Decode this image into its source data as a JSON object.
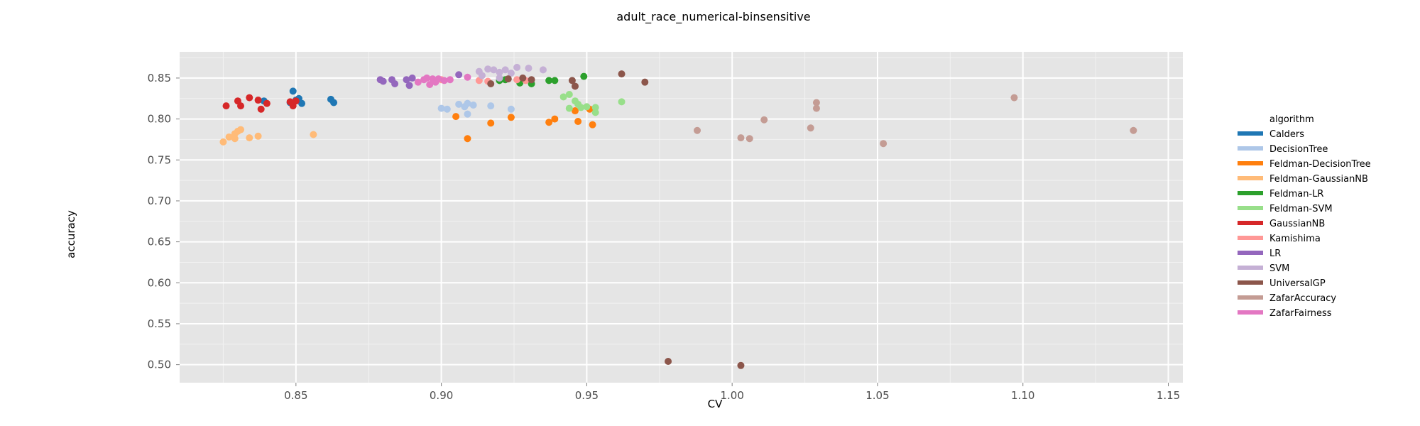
{
  "chart_data": {
    "type": "scatter",
    "title": "adult_race_numerical-binsensitive",
    "xlabel": "CV",
    "ylabel": "accuracy",
    "xlim": [
      0.81,
      1.155
    ],
    "ylim": [
      0.478,
      0.882
    ],
    "x_ticks": [
      "0.85",
      "0.90",
      "0.95",
      "1.00",
      "1.05",
      "1.10",
      "1.15"
    ],
    "y_ticks": [
      "0.50",
      "0.55",
      "0.60",
      "0.65",
      "0.70",
      "0.75",
      "0.80",
      "0.85"
    ],
    "grid": true,
    "legend_title": "algorithm",
    "legend_position": "right",
    "series": [
      {
        "name": "Calders",
        "color": "#1f77b4",
        "points": [
          [
            0.849,
            0.834
          ],
          [
            0.851,
            0.825
          ],
          [
            0.852,
            0.819
          ],
          [
            0.848,
            0.82
          ],
          [
            0.862,
            0.824
          ],
          [
            0.863,
            0.82
          ],
          [
            0.839,
            0.822
          ],
          [
            0.85,
            0.823
          ]
        ]
      },
      {
        "name": "DecisionTree",
        "color": "#aec7e8",
        "points": [
          [
            0.9,
            0.813
          ],
          [
            0.902,
            0.812
          ],
          [
            0.906,
            0.818
          ],
          [
            0.908,
            0.815
          ],
          [
            0.909,
            0.819
          ],
          [
            0.911,
            0.817
          ],
          [
            0.917,
            0.816
          ],
          [
            0.909,
            0.806
          ],
          [
            0.924,
            0.812
          ]
        ]
      },
      {
        "name": "Feldman-DecisionTree",
        "color": "#ff7f0e",
        "points": [
          [
            0.905,
            0.803
          ],
          [
            0.909,
            0.776
          ],
          [
            0.917,
            0.795
          ],
          [
            0.924,
            0.802
          ],
          [
            0.937,
            0.796
          ],
          [
            0.939,
            0.8
          ],
          [
            0.946,
            0.81
          ],
          [
            0.947,
            0.797
          ],
          [
            0.951,
            0.812
          ],
          [
            0.952,
            0.793
          ]
        ]
      },
      {
        "name": "Feldman-GaussianNB",
        "color": "#ffbb78",
        "points": [
          [
            0.825,
            0.772
          ],
          [
            0.827,
            0.778
          ],
          [
            0.829,
            0.782
          ],
          [
            0.829,
            0.776
          ],
          [
            0.83,
            0.785
          ],
          [
            0.831,
            0.787
          ],
          [
            0.834,
            0.777
          ],
          [
            0.837,
            0.779
          ],
          [
            0.856,
            0.781
          ]
        ]
      },
      {
        "name": "Feldman-LR",
        "color": "#2ca02c",
        "points": [
          [
            0.92,
            0.847
          ],
          [
            0.922,
            0.848
          ],
          [
            0.927,
            0.844
          ],
          [
            0.928,
            0.849
          ],
          [
            0.931,
            0.843
          ],
          [
            0.937,
            0.847
          ],
          [
            0.939,
            0.847
          ],
          [
            0.949,
            0.852
          ]
        ]
      },
      {
        "name": "Feldman-SVM",
        "color": "#98df8a",
        "points": [
          [
            0.942,
            0.827
          ],
          [
            0.944,
            0.83
          ],
          [
            0.944,
            0.813
          ],
          [
            0.946,
            0.822
          ],
          [
            0.947,
            0.818
          ],
          [
            0.948,
            0.814
          ],
          [
            0.95,
            0.815
          ],
          [
            0.953,
            0.808
          ],
          [
            0.953,
            0.814
          ],
          [
            0.962,
            0.821
          ]
        ]
      },
      {
        "name": "GaussianNB",
        "color": "#d62728",
        "points": [
          [
            0.826,
            0.816
          ],
          [
            0.83,
            0.822
          ],
          [
            0.831,
            0.816
          ],
          [
            0.834,
            0.826
          ],
          [
            0.837,
            0.823
          ],
          [
            0.838,
            0.812
          ],
          [
            0.84,
            0.819
          ],
          [
            0.848,
            0.821
          ],
          [
            0.849,
            0.816
          ],
          [
            0.85,
            0.822
          ]
        ]
      },
      {
        "name": "Kamishima",
        "color": "#ff9896",
        "points": [
          [
            0.913,
            0.847
          ],
          [
            0.916,
            0.846
          ],
          [
            0.926,
            0.848
          ],
          [
            0.929,
            0.847
          ],
          [
            0.9,
            0.848
          ]
        ]
      },
      {
        "name": "LR",
        "color": "#9467bd",
        "points": [
          [
            0.879,
            0.848
          ],
          [
            0.88,
            0.846
          ],
          [
            0.883,
            0.848
          ],
          [
            0.884,
            0.843
          ],
          [
            0.888,
            0.848
          ],
          [
            0.889,
            0.841
          ],
          [
            0.89,
            0.85
          ],
          [
            0.906,
            0.854
          ]
        ]
      },
      {
        "name": "SVM",
        "color": "#c5b0d5",
        "points": [
          [
            0.913,
            0.858
          ],
          [
            0.916,
            0.861
          ],
          [
            0.918,
            0.86
          ],
          [
            0.92,
            0.857
          ],
          [
            0.922,
            0.86
          ],
          [
            0.924,
            0.856
          ],
          [
            0.926,
            0.863
          ],
          [
            0.93,
            0.862
          ],
          [
            0.935,
            0.86
          ],
          [
            0.914,
            0.853
          ],
          [
            0.92,
            0.85
          ]
        ]
      },
      {
        "name": "UniversalGP",
        "color": "#8c564b",
        "points": [
          [
            0.917,
            0.843
          ],
          [
            0.923,
            0.849
          ],
          [
            0.928,
            0.85
          ],
          [
            0.931,
            0.848
          ],
          [
            0.945,
            0.847
          ],
          [
            0.946,
            0.84
          ],
          [
            0.962,
            0.855
          ],
          [
            0.97,
            0.845
          ],
          [
            0.978,
            0.504
          ],
          [
            1.003,
            0.499
          ]
        ]
      },
      {
        "name": "ZafarAccuracy",
        "color": "#c49c94",
        "points": [
          [
            0.988,
            0.786
          ],
          [
            1.003,
            0.777
          ],
          [
            1.006,
            0.776
          ],
          [
            1.011,
            0.799
          ],
          [
            1.027,
            0.789
          ],
          [
            1.029,
            0.82
          ],
          [
            1.029,
            0.813
          ],
          [
            1.052,
            0.77
          ],
          [
            1.097,
            0.826
          ],
          [
            1.138,
            0.786
          ]
        ]
      },
      {
        "name": "ZafarFairness",
        "color": "#e377c2",
        "points": [
          [
            0.892,
            0.845
          ],
          [
            0.894,
            0.848
          ],
          [
            0.895,
            0.85
          ],
          [
            0.896,
            0.842
          ],
          [
            0.897,
            0.849
          ],
          [
            0.898,
            0.845
          ],
          [
            0.899,
            0.849
          ],
          [
            0.901,
            0.847
          ],
          [
            0.903,
            0.848
          ],
          [
            0.909,
            0.851
          ]
        ]
      }
    ]
  }
}
